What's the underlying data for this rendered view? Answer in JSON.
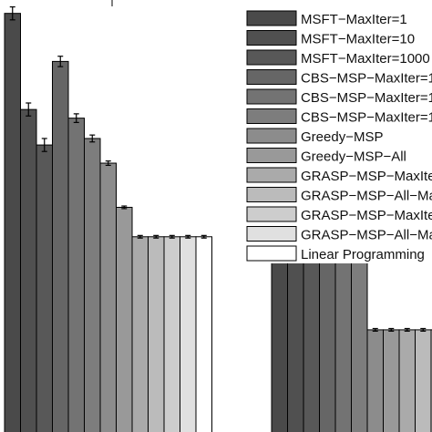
{
  "chart_data": {
    "type": "bar",
    "legend_position": "top-right",
    "grid": false,
    "ylim": [
      0,
      1
    ],
    "series": [
      {
        "name": "MSFT−MaxIter=1",
        "color": "#4a4a4a",
        "values": [
          0.967,
          0.592
        ],
        "errors": [
          0.015,
          0.018
        ]
      },
      {
        "name": "MSFT−MaxIter=10",
        "color": "#505050",
        "values": [
          0.745,
          0.509
        ],
        "errors": [
          0.015,
          0.018
        ]
      },
      {
        "name": "MSFT−MaxIter=1000",
        "color": "#585858",
        "values": [
          0.663,
          0.438
        ],
        "errors": [
          0.015,
          0.018
        ]
      },
      {
        "name": "CBS−MSP−MaxIter=1",
        "color": "#666666",
        "values": [
          0.856,
          0.667
        ],
        "errors": [
          0.012,
          0.01
        ]
      },
      {
        "name": "CBS−MSP−MaxIter=10",
        "color": "#737373",
        "values": [
          0.725,
          0.598
        ],
        "errors": [
          0.01,
          0.008
        ]
      },
      {
        "name": "CBS−MSP−MaxIter=1000",
        "color": "#7d7d7d",
        "values": [
          0.678,
          0.53
        ],
        "errors": [
          0.008,
          0.006
        ]
      },
      {
        "name": "Greedy−MSP",
        "color": "#8c8c8c",
        "values": [
          0.621,
          0.236
        ],
        "errors": [
          0.005,
          0.003
        ]
      },
      {
        "name": "Greedy−MSP−All",
        "color": "#999999",
        "values": [
          0.519,
          0.236
        ],
        "errors": [
          0.003,
          0.003
        ]
      },
      {
        "name": "GRASP−MSP−MaxIter=1",
        "color": "#aaaaaa",
        "values": [
          0.451,
          0.236
        ],
        "errors": [
          0.003,
          0.003
        ]
      },
      {
        "name": "GRASP−MSP−All−MaxIter=1",
        "color": "#bbbbbb",
        "values": [
          0.451,
          0.236
        ],
        "errors": [
          0.003,
          0.003
        ]
      },
      {
        "name": "GRASP−MSP−MaxIter=10",
        "color": "#cdcdcd",
        "values": [
          0.451,
          0.236
        ],
        "errors": [
          0.003,
          0.003
        ]
      },
      {
        "name": "GRASP−MSP−All−MaxIter=10",
        "color": "#e0e0e0",
        "values": [
          0.451,
          0.236
        ],
        "errors": [
          0.003,
          0.003
        ]
      },
      {
        "name": "Linear Programming",
        "color": "#ffffff",
        "values": [
          0.451,
          0.236
        ],
        "errors": [
          0.003,
          0.003
        ]
      }
    ]
  }
}
